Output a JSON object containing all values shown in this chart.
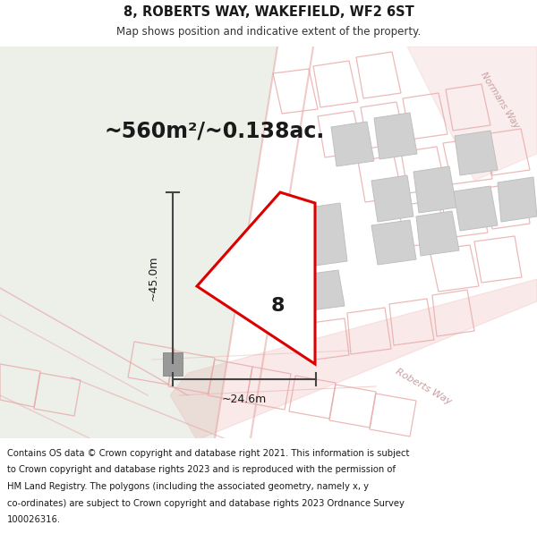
{
  "title_line1": "8, ROBERTS WAY, WAKEFIELD, WF2 6ST",
  "title_line2": "Map shows position and indicative extent of the property.",
  "area_text": "~560m²/~0.138ac.",
  "dim_height": "~45.0m",
  "dim_width": "~24.6m",
  "property_number": "8",
  "footer_lines": [
    "Contains OS data © Crown copyright and database right 2021. This information is subject",
    "to Crown copyright and database rights 2023 and is reproduced with the permission of",
    "HM Land Registry. The polygons (including the associated geometry, namely x, y",
    "co-ordinates) are subject to Crown copyright and database rights 2023 Ordnance Survey",
    "100026316."
  ],
  "map_green_bg": "#ecf0e8",
  "map_white_bg": "#f5f5f3",
  "plot_color": "#dd0000",
  "outline_color": "#e8a8a8",
  "building_fill": "#d0d0d0",
  "building_edge": "#c0c0c0",
  "dim_color": "#444444",
  "text_dark": "#1a1a1a",
  "footer_bg": "#ffffff",
  "title_bg": "#ffffff",
  "road_label_color": "#c8a0a0"
}
